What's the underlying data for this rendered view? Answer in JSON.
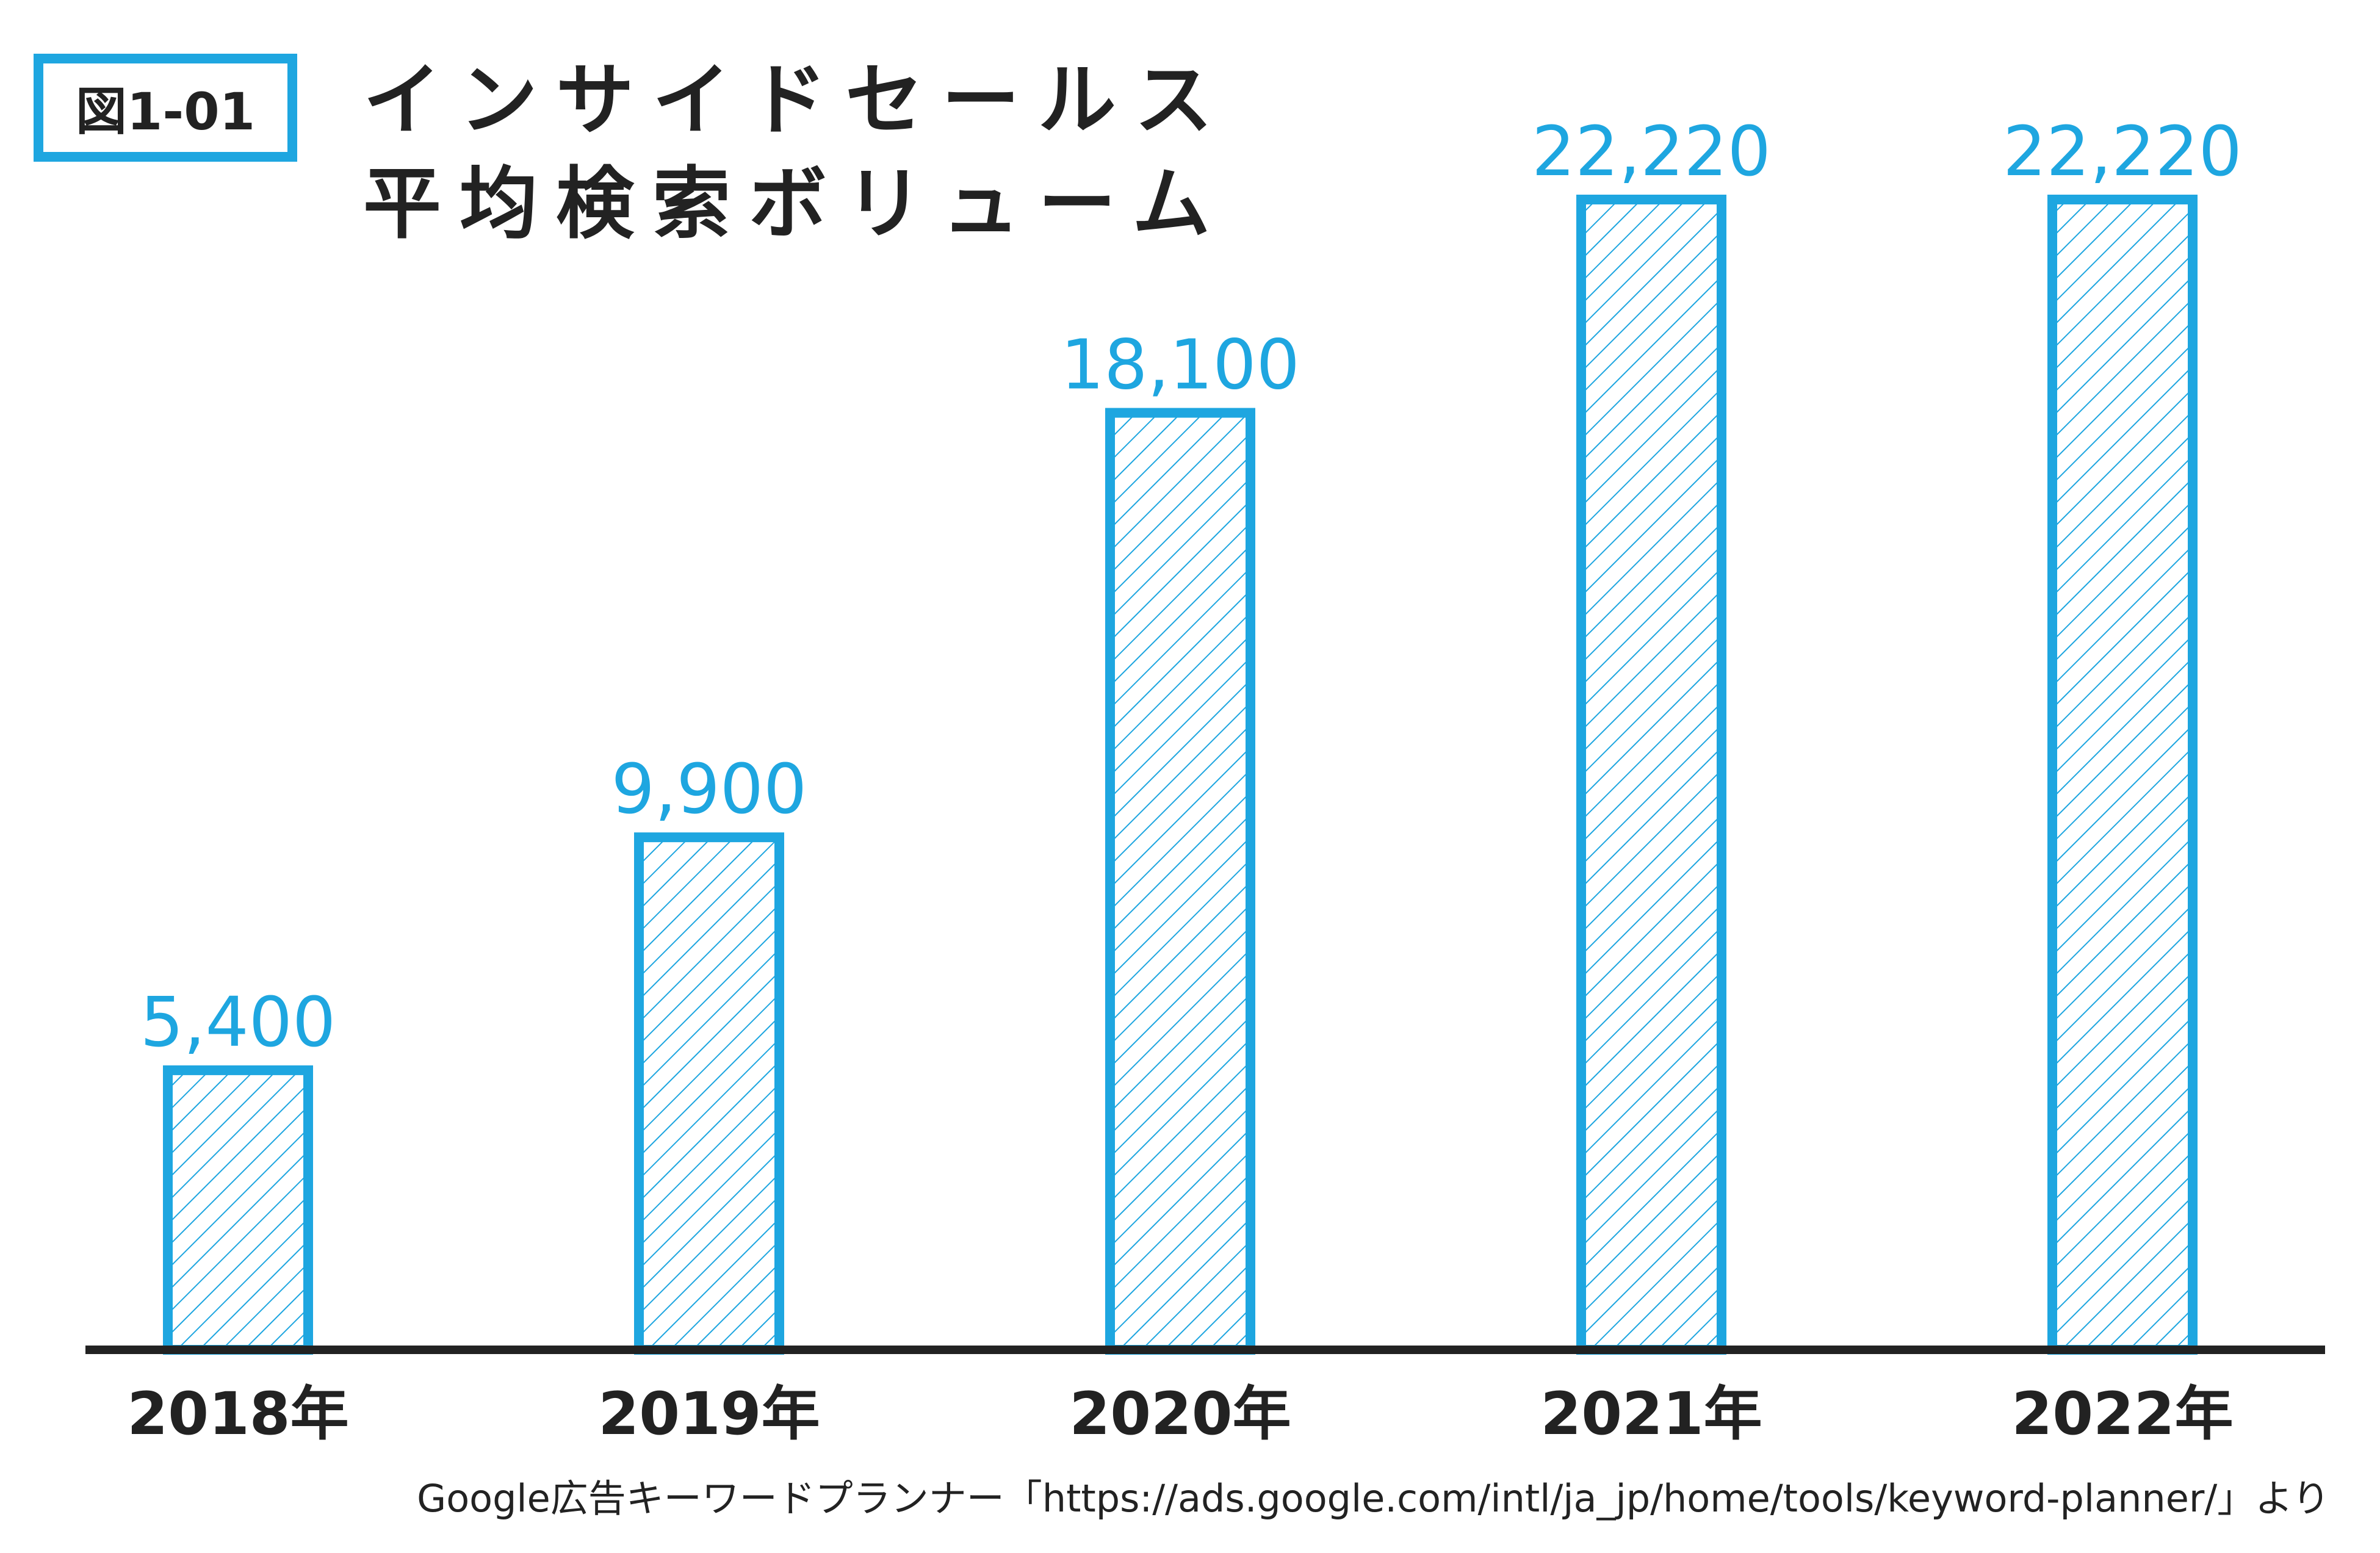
{
  "figure_label": "図1-01",
  "title": {
    "line1": "インサイドセールス",
    "line2": "平均検索ボリューム"
  },
  "source_note": "Google広告キーワードプランナー「https://ads.google.com/intl/ja_jp/home/tools/keyword-planner/」より",
  "colors": {
    "bar_stroke": "#1ea6e0",
    "bar_hatch": "#1ea6e0",
    "value_text": "#1ea6e0",
    "axis": "#222222",
    "text": "#222222"
  },
  "chart_data": {
    "type": "bar",
    "title": "インサイドセールス 平均検索ボリューム",
    "categories": [
      "2018年",
      "2019年",
      "2020年",
      "2021年",
      "2022年"
    ],
    "values": [
      5400,
      9900,
      18100,
      22220,
      22220
    ],
    "value_labels": [
      "5,400",
      "9,900",
      "18,100",
      "22,220",
      "22,220"
    ],
    "xlabel": "",
    "ylabel": "",
    "ylim": [
      0,
      22220
    ],
    "grid": false,
    "legend": "none",
    "bar_fill": "hatched"
  }
}
